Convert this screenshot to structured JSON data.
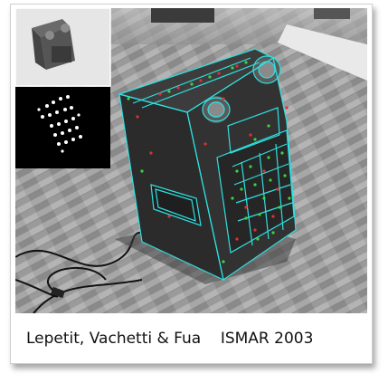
{
  "figure": {
    "caption": "Lepetit, Vachetti & Fua    ISMAR 2003",
    "main_image": "grayscale photo of a boxy electronic device on a parquet floor with cyan wireframe model overlay and red/green tracked feature points",
    "inset_top": "grayscale photo of the device",
    "inset_bottom": "black background with white feature point cloud"
  },
  "colors": {
    "wireframe": "#2fe0e0",
    "inlier": "#3fd23f",
    "outlier": "#e03030",
    "frame_border": "#cfcfcf"
  }
}
